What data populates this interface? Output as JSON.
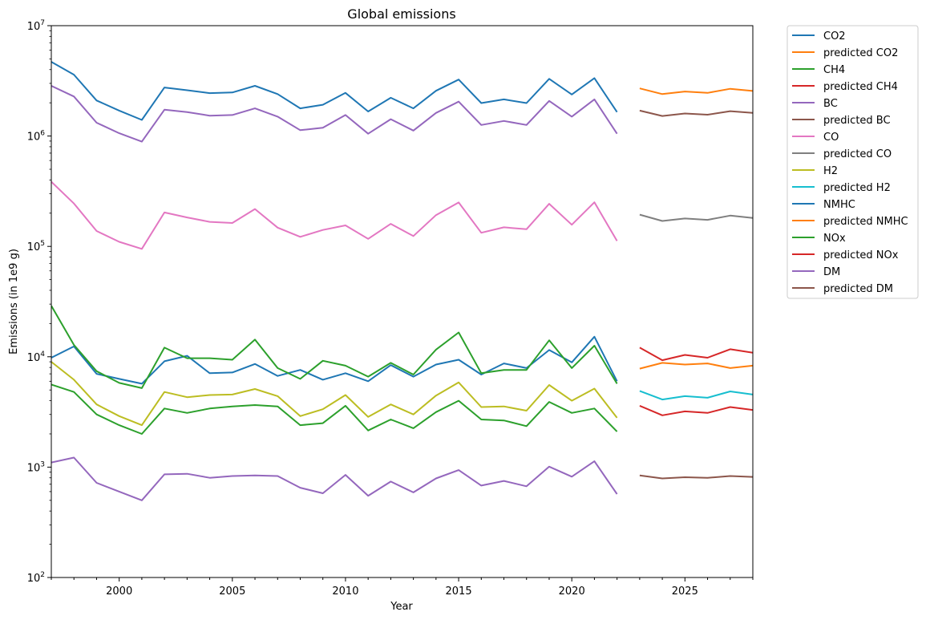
{
  "chart_data": {
    "type": "line",
    "title": "Global emissions",
    "xlabel": "Year",
    "ylabel": "Emissions (in 1e9 g)",
    "yscale": "log",
    "xlim": [
      1997,
      2028
    ],
    "ylim": [
      100,
      10000000
    ],
    "grid": false,
    "legend_position": "outside-right",
    "x_ticks": [
      2000,
      2005,
      2010,
      2015,
      2020,
      2025
    ],
    "x_tick_labels": [
      "2000",
      "2005",
      "2010",
      "2015",
      "2020",
      "2025"
    ],
    "y_ticks": [
      {
        "value": 100,
        "base": "10",
        "exp": "2"
      },
      {
        "value": 1000,
        "base": "10",
        "exp": "3"
      },
      {
        "value": 10000,
        "base": "10",
        "exp": "4"
      },
      {
        "value": 100000,
        "base": "10",
        "exp": "5"
      },
      {
        "value": 1000000,
        "base": "10",
        "exp": "6"
      },
      {
        "value": 10000000,
        "base": "10",
        "exp": "7"
      }
    ],
    "series": [
      {
        "name": "CO2",
        "color": "#1f77b4",
        "x": [
          1997,
          1998,
          1999,
          2000,
          2001,
          2002,
          2003,
          2004,
          2005,
          2006,
          2007,
          2008,
          2009,
          2010,
          2011,
          2012,
          2013,
          2014,
          2015,
          2016,
          2017,
          2018,
          2019,
          2020,
          2021,
          2022
        ],
        "values": [
          4700000,
          3600000,
          2100000,
          1700000,
          1400000,
          2750000,
          2600000,
          2450000,
          2480000,
          2850000,
          2400000,
          1780000,
          1920000,
          2460000,
          1670000,
          2220000,
          1780000,
          2570000,
          3250000,
          1990000,
          2150000,
          1990000,
          3300000,
          2380000,
          3350000,
          1650000
        ]
      },
      {
        "name": "predicted CO2",
        "color": "#ff7f0e",
        "x": [
          2023,
          2024,
          2025,
          2026,
          2027,
          2028
        ],
        "values": [
          2700000,
          2400000,
          2530000,
          2460000,
          2680000,
          2560000
        ]
      },
      {
        "name": "CH4",
        "color": "#2ca02c",
        "x": [
          1997,
          1998,
          1999,
          2000,
          2001,
          2002,
          2003,
          2004,
          2005,
          2006,
          2007,
          2008,
          2009,
          2010,
          2011,
          2012,
          2013,
          2014,
          2015,
          2016,
          2017,
          2018,
          2019,
          2020,
          2021,
          2022
        ],
        "values": [
          5600,
          4800,
          3000,
          2400,
          2000,
          3400,
          3100,
          3400,
          3550,
          3650,
          3550,
          2400,
          2500,
          3600,
          2150,
          2700,
          2250,
          3150,
          4000,
          2700,
          2650,
          2350,
          3900,
          3100,
          3400,
          2100
        ]
      },
      {
        "name": "predicted CH4",
        "color": "#d62728",
        "x": [
          2023,
          2024,
          2025,
          2026,
          2027,
          2028
        ],
        "values": [
          3600,
          2950,
          3200,
          3100,
          3500,
          3300
        ]
      },
      {
        "name": "BC",
        "color": "#9467bd",
        "x": [
          1997,
          1998,
          1999,
          2000,
          2001,
          2002,
          2003,
          2004,
          2005,
          2006,
          2007,
          2008,
          2009,
          2010,
          2011,
          2012,
          2013,
          2014,
          2015,
          2016,
          2017,
          2018,
          2019,
          2020,
          2021,
          2022
        ],
        "values": [
          2850000,
          2280000,
          1320000,
          1060000,
          890000,
          1730000,
          1650000,
          1530000,
          1550000,
          1780000,
          1500000,
          1130000,
          1190000,
          1550000,
          1050000,
          1420000,
          1120000,
          1620000,
          2050000,
          1260000,
          1370000,
          1260000,
          2080000,
          1500000,
          2150000,
          1050000
        ]
      },
      {
        "name": "predicted BC",
        "color": "#8c564b",
        "x": [
          2023,
          2024,
          2025,
          2026,
          2027,
          2028
        ],
        "values": [
          1700000,
          1520000,
          1600000,
          1560000,
          1680000,
          1620000
        ]
      },
      {
        "name": "CO",
        "color": "#e377c2",
        "x": [
          1997,
          1998,
          1999,
          2000,
          2001,
          2002,
          2003,
          2004,
          2005,
          2006,
          2007,
          2008,
          2009,
          2010,
          2011,
          2012,
          2013,
          2014,
          2015,
          2016,
          2017,
          2018,
          2019,
          2020,
          2021,
          2022
        ],
        "values": [
          385000,
          245000,
          138000,
          110000,
          95000,
          203000,
          183000,
          167000,
          163000,
          218000,
          148000,
          122000,
          141000,
          155000,
          117000,
          160000,
          124000,
          192000,
          250000,
          133000,
          149000,
          143000,
          243000,
          157000,
          251000,
          112000
        ]
      },
      {
        "name": "predicted CO",
        "color": "#7f7f7f",
        "x": [
          2023,
          2024,
          2025,
          2026,
          2027,
          2028
        ],
        "values": [
          194000,
          170000,
          179000,
          174000,
          190000,
          181000
        ]
      },
      {
        "name": "H2",
        "color": "#bcbd22",
        "x": [
          1997,
          1998,
          1999,
          2000,
          2001,
          2002,
          2003,
          2004,
          2005,
          2006,
          2007,
          2008,
          2009,
          2010,
          2011,
          2012,
          2013,
          2014,
          2015,
          2016,
          2017,
          2018,
          2019,
          2020,
          2021,
          2022
        ],
        "values": [
          9000,
          6200,
          3700,
          2900,
          2400,
          4800,
          4300,
          4500,
          4550,
          5100,
          4400,
          2900,
          3350,
          4500,
          2850,
          3700,
          3000,
          4450,
          5850,
          3500,
          3550,
          3250,
          5550,
          4000,
          5150,
          2800
        ]
      },
      {
        "name": "predicted H2",
        "color": "#17becf",
        "x": [
          2023,
          2024,
          2025,
          2026,
          2027,
          2028
        ],
        "values": [
          4900,
          4100,
          4400,
          4250,
          4850,
          4550
        ]
      },
      {
        "name": "NMHC",
        "color": "#1f77b4",
        "x": [
          1997,
          1998,
          1999,
          2000,
          2001,
          2002,
          2003,
          2004,
          2005,
          2006,
          2007,
          2008,
          2009,
          2010,
          2011,
          2012,
          2013,
          2014,
          2015,
          2016,
          2017,
          2018,
          2019,
          2020,
          2021,
          2022
        ],
        "values": [
          9800,
          12400,
          7000,
          6300,
          5700,
          9100,
          10200,
          7100,
          7200,
          8600,
          6700,
          7600,
          6200,
          7100,
          6000,
          8400,
          6600,
          8500,
          9400,
          6900,
          8700,
          7900,
          11500,
          8900,
          15200,
          6000
        ]
      },
      {
        "name": "predicted NMHC",
        "color": "#ff7f0e",
        "x": [
          2023,
          2024,
          2025,
          2026,
          2027,
          2028
        ],
        "values": [
          7800,
          8800,
          8500,
          8700,
          7900,
          8300
        ]
      },
      {
        "name": "NOx",
        "color": "#2ca02c",
        "x": [
          1997,
          1998,
          1999,
          2000,
          2001,
          2002,
          2003,
          2004,
          2005,
          2006,
          2007,
          2008,
          2009,
          2010,
          2011,
          2012,
          2013,
          2014,
          2015,
          2016,
          2017,
          2018,
          2019,
          2020,
          2021,
          2022
        ],
        "values": [
          29000,
          12800,
          7400,
          5800,
          5200,
          12100,
          9700,
          9700,
          9400,
          14300,
          7900,
          6300,
          9200,
          8300,
          6600,
          8800,
          6900,
          11600,
          16600,
          7100,
          7600,
          7600,
          14100,
          7900,
          12600,
          5700
        ]
      },
      {
        "name": "predicted NOx",
        "color": "#d62728",
        "x": [
          2023,
          2024,
          2025,
          2026,
          2027,
          2028
        ],
        "values": [
          12100,
          9300,
          10400,
          9800,
          11700,
          10900
        ]
      },
      {
        "name": "DM",
        "color": "#9467bd",
        "x": [
          1997,
          1998,
          1999,
          2000,
          2001,
          2002,
          2003,
          2004,
          2005,
          2006,
          2007,
          2008,
          2009,
          2010,
          2011,
          2012,
          2013,
          2014,
          2015,
          2016,
          2017,
          2018,
          2019,
          2020,
          2021,
          2022
        ],
        "values": [
          1100,
          1220,
          720,
          600,
          500,
          860,
          870,
          800,
          830,
          840,
          830,
          650,
          580,
          850,
          550,
          740,
          590,
          790,
          940,
          680,
          750,
          670,
          1010,
          820,
          1130,
          570
        ]
      },
      {
        "name": "predicted DM",
        "color": "#8c564b",
        "x": [
          2023,
          2024,
          2025,
          2026,
          2027,
          2028
        ],
        "values": [
          840,
          790,
          810,
          800,
          830,
          815
        ]
      }
    ]
  }
}
